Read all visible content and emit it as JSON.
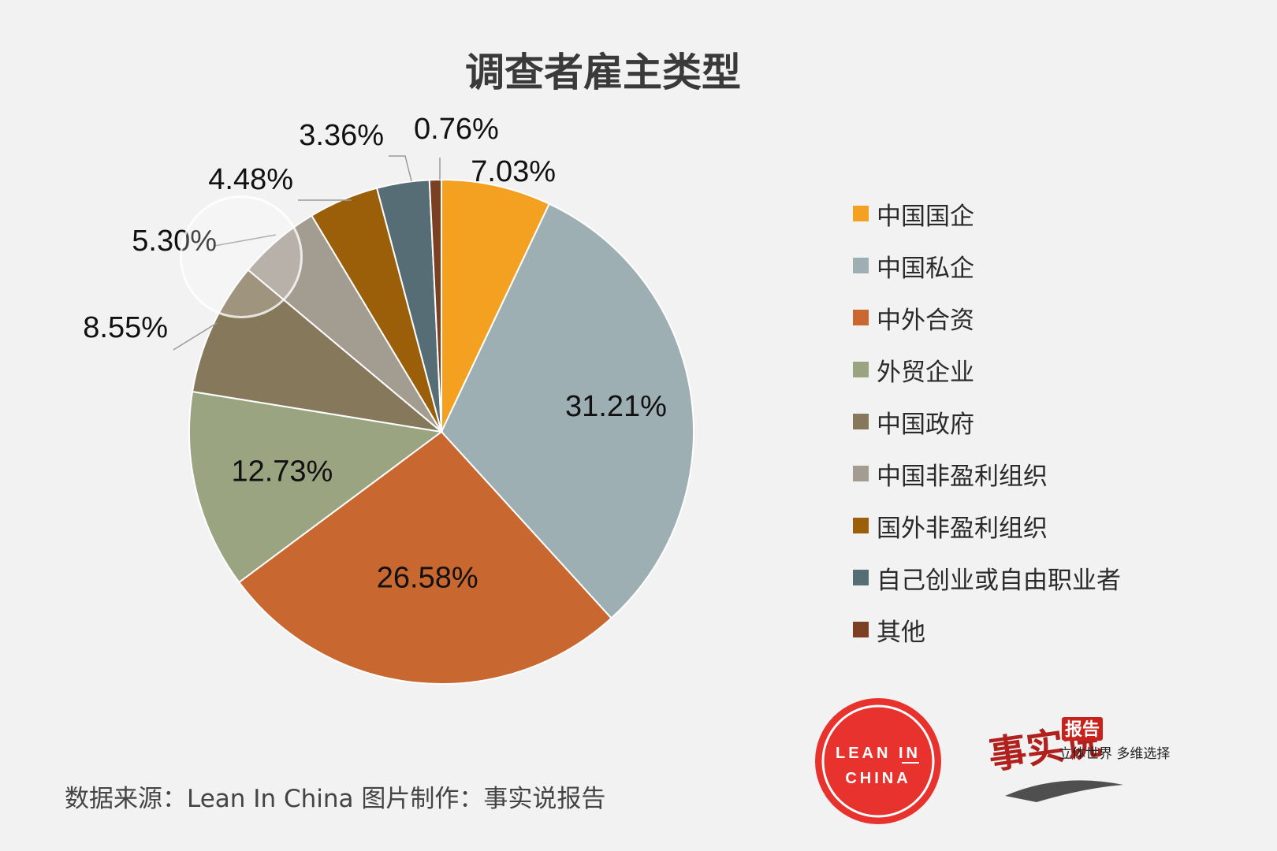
{
  "title": "调查者雇主类型",
  "chart_data": {
    "type": "pie",
    "title": "调查者雇主类型",
    "legend_position": "right",
    "slices": [
      {
        "name": "中国国企",
        "value": 7.03,
        "label": "7.03%",
        "color": "#f4a020"
      },
      {
        "name": "中国私企",
        "value": 31.21,
        "label": "31.21%",
        "color": "#9eafb4"
      },
      {
        "name": "中外合资",
        "value": 26.58,
        "label": "26.58%",
        "color": "#c8672f"
      },
      {
        "name": "外贸企业",
        "value": 12.73,
        "label": "12.73%",
        "color": "#9ba481"
      },
      {
        "name": "中国政府",
        "value": 8.55,
        "label": "8.55%",
        "color": "#85785b"
      },
      {
        "name": "中国非盈利组织",
        "value": 5.3,
        "label": "5.30%",
        "color": "#a39c91"
      },
      {
        "name": "国外非盈利组织",
        "value": 4.48,
        "label": "4.48%",
        "color": "#9b5f0a"
      },
      {
        "name": "自己创业或自由职业者",
        "value": 3.36,
        "label": "3.36%",
        "color": "#566d75"
      },
      {
        "name": "其他",
        "value": 0.76,
        "label": "0.76%",
        "color": "#7b3f22"
      }
    ]
  },
  "footer": {
    "source": "数据来源：Lean In China  图片制作：事实说报告"
  },
  "logos": {
    "leanin_line1": "LEAN IN",
    "leanin_line2": "CHINA",
    "shishi_chars": "事实说",
    "shishi_badge": "报告",
    "shishi_slogan": "立体世界 多维选择"
  },
  "watermark": {
    "leanin_line1": "LEAN IN",
    "leanin_line2": "CHINA"
  }
}
